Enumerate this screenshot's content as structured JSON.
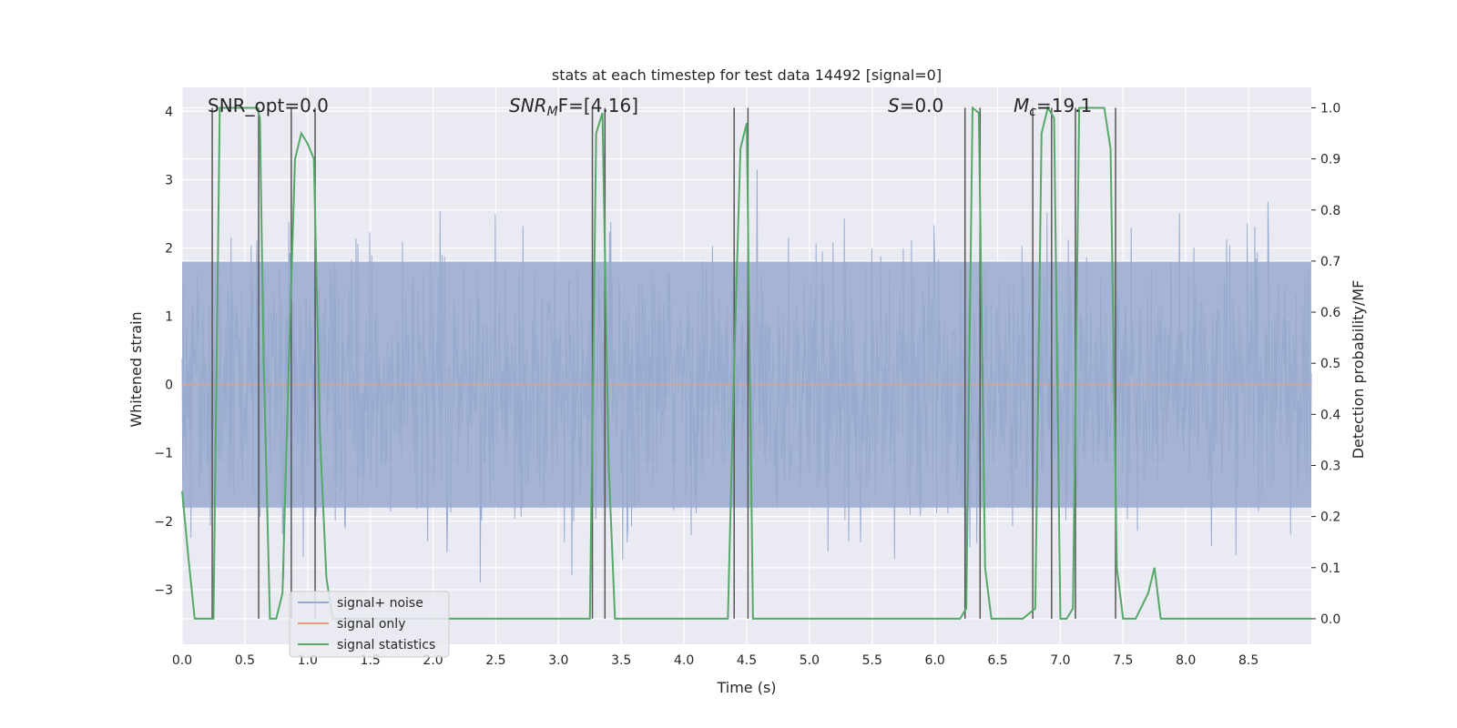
{
  "chart_data": {
    "type": "line",
    "title": "stats at each timestep for test data 14492 [signal=0]",
    "xlabel": "Time (s)",
    "ylabel": "Whitened strain",
    "y2label": "Detection probability/MF",
    "xlim": [
      0.0,
      9.0
    ],
    "ylim": [
      -3.8,
      4.35
    ],
    "y2lim": [
      -0.05,
      1.04
    ],
    "xticks": [
      "0.0",
      "0.5",
      "1.0",
      "1.5",
      "2.0",
      "2.5",
      "3.0",
      "3.5",
      "4.0",
      "4.5",
      "5.0",
      "5.5",
      "6.0",
      "6.5",
      "7.0",
      "7.5",
      "8.0",
      "8.5"
    ],
    "xtick_values": [
      0.0,
      0.5,
      1.0,
      1.5,
      2.0,
      2.5,
      3.0,
      3.5,
      4.0,
      4.5,
      5.0,
      5.5,
      6.0,
      6.5,
      7.0,
      7.5,
      8.0,
      8.5
    ],
    "yticks": [
      "−3",
      "−2",
      "−1",
      "0",
      "1",
      "2",
      "3",
      "4"
    ],
    "ytick_values": [
      -3,
      -2,
      -1,
      0,
      1,
      2,
      3,
      4
    ],
    "y2ticks": [
      "0.0",
      "0.1",
      "0.2",
      "0.3",
      "0.4",
      "0.5",
      "0.6",
      "0.7",
      "0.8",
      "0.9",
      "1.0"
    ],
    "y2tick_values": [
      0.0,
      0.1,
      0.2,
      0.3,
      0.4,
      0.5,
      0.6,
      0.7,
      0.8,
      0.9,
      1.0
    ],
    "annotations": {
      "snr_opt": "SNR_opt=0.0",
      "snr_mf_prefix": "SNR",
      "snr_mf_sub": "M",
      "snr_mf_suffix": "F=[4.16]",
      "s_prefix": "S",
      "s_suffix": "=0.0",
      "mc_prefix": "M",
      "mc_sub": "c",
      "mc_suffix": "=19.1"
    },
    "legend": {
      "placement": "lower-left",
      "entries": [
        "signal+ noise",
        "signal only",
        "signal statistics"
      ]
    },
    "series": [
      {
        "name": "signal+ noise",
        "color": "#99aacf",
        "axis": "left",
        "description": "whitened strain, noise only, amplitude approx ±2 with spikes to ±3.3",
        "sample_count": 1800,
        "envelope": 1.8
      },
      {
        "name": "signal only",
        "color": "#e8a07c",
        "axis": "left",
        "x": [
          0.0,
          9.0
        ],
        "values": [
          0.0,
          0.0
        ]
      },
      {
        "name": "signal statistics",
        "color": "#55a868",
        "axis": "right",
        "x": [
          0.0,
          0.05,
          0.1,
          0.2,
          0.25,
          0.3,
          0.35,
          0.4,
          0.45,
          0.5,
          0.55,
          0.6,
          0.62,
          0.65,
          0.7,
          0.75,
          0.8,
          0.85,
          0.9,
          0.95,
          1.0,
          1.05,
          1.1,
          1.15,
          1.2,
          1.25,
          1.3,
          3.2,
          3.25,
          3.3,
          3.35,
          3.4,
          3.45,
          3.5,
          4.35,
          4.4,
          4.45,
          4.5,
          4.55,
          6.2,
          6.25,
          6.3,
          6.35,
          6.4,
          6.45,
          6.5,
          6.6,
          6.7,
          6.8,
          6.85,
          6.9,
          6.95,
          7.0,
          7.05,
          7.1,
          7.15,
          7.2,
          7.25,
          7.3,
          7.35,
          7.4,
          7.45,
          7.5,
          7.55,
          7.6,
          7.7,
          7.75,
          7.8,
          8.0,
          9.0
        ],
        "values": [
          0.25,
          0.12,
          0.0,
          0.0,
          0.0,
          1.0,
          1.0,
          1.0,
          1.0,
          1.0,
          1.0,
          1.0,
          0.98,
          0.5,
          0.0,
          0.0,
          0.05,
          0.5,
          0.9,
          0.95,
          0.93,
          0.9,
          0.35,
          0.08,
          0.0,
          0.0,
          0.0,
          0.0,
          0.0,
          0.95,
          0.99,
          0.3,
          0.0,
          0.0,
          0.0,
          0.5,
          0.92,
          0.97,
          0.0,
          0.0,
          0.02,
          1.0,
          0.99,
          0.1,
          0.0,
          0.0,
          0.0,
          0.0,
          0.02,
          0.95,
          1.0,
          0.98,
          0.0,
          0.0,
          0.02,
          1.0,
          1.0,
          1.0,
          1.0,
          1.0,
          0.92,
          0.1,
          0.0,
          0.0,
          0.0,
          0.05,
          0.1,
          0.0,
          0.0,
          0.0
        ]
      }
    ],
    "vertical_markers": [
      0.24,
      0.61,
      0.87,
      1.06,
      3.27,
      3.37,
      4.4,
      4.51,
      6.24,
      6.36,
      6.78,
      6.93,
      7.12,
      7.44
    ]
  }
}
